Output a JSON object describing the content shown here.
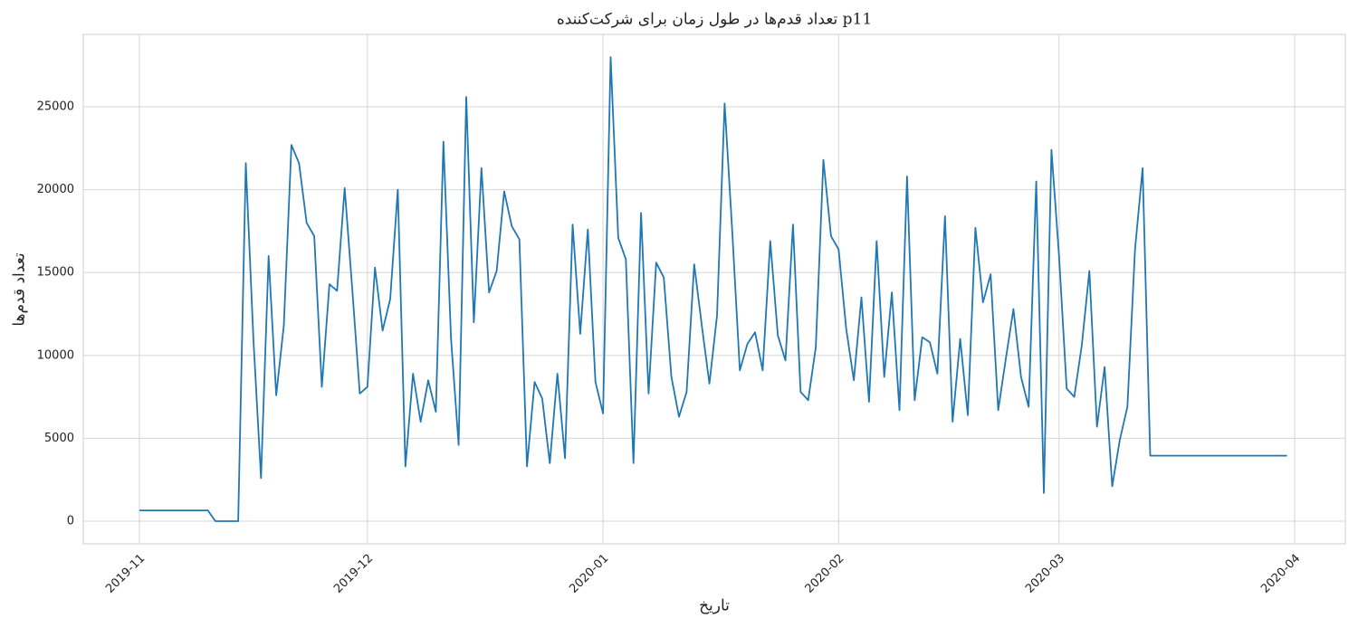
{
  "chart_data": {
    "type": "line",
    "title": "تعداد قدم‌ها در طول زمان برای شرکت‌کننده p11",
    "x_label": "تاریخ",
    "y_label": "تعداد قدم‌ها",
    "categories": [
      "2019-11",
      null,
      null,
      null,
      null,
      null,
      null,
      null,
      null,
      null,
      null,
      null,
      null,
      null,
      null,
      null,
      null,
      null,
      null,
      null,
      null,
      null,
      null,
      null,
      null,
      null,
      null,
      null,
      null,
      null,
      "2019-12",
      null,
      null,
      null,
      null,
      null,
      null,
      null,
      null,
      null,
      null,
      null,
      null,
      null,
      null,
      null,
      null,
      null,
      null,
      null,
      null,
      null,
      null,
      null,
      null,
      null,
      null,
      null,
      null,
      null,
      null,
      "2020-01",
      null,
      null,
      null,
      null,
      null,
      null,
      null,
      null,
      null,
      null,
      null,
      null,
      null,
      null,
      null,
      null,
      null,
      null,
      null,
      null,
      null,
      null,
      null,
      null,
      null,
      null,
      null,
      null,
      null,
      null,
      "2020-02",
      null,
      null,
      null,
      null,
      null,
      null,
      null,
      null,
      null,
      null,
      null,
      null,
      null,
      null,
      null,
      null,
      null,
      null,
      null,
      null,
      null,
      null,
      null,
      null,
      null,
      null,
      null,
      null,
      "2020-03",
      null,
      null,
      null,
      null,
      null,
      null,
      null,
      null,
      null,
      null,
      null,
      null,
      null,
      null,
      null,
      null,
      null,
      null,
      null,
      null,
      null,
      null,
      null,
      null,
      null,
      null,
      null,
      null,
      null,
      null,
      "2020-04"
    ],
    "series": [
      {
        "name": "p11",
        "color": "#1f77b4",
        "values": [
          650,
          650,
          650,
          650,
          650,
          650,
          650,
          650,
          650,
          650,
          0,
          0,
          0,
          0,
          21600,
          11000,
          2600,
          16000,
          7600,
          11800,
          22700,
          21600,
          18000,
          17200,
          8100,
          14300,
          13900,
          20100,
          14000,
          7700,
          8100,
          15300,
          11500,
          13400,
          20000,
          3300,
          8900,
          6000,
          8500,
          6600,
          22900,
          11000,
          4600,
          25600,
          12000,
          21300,
          13800,
          15100,
          19900,
          17800,
          17000,
          3300,
          8400,
          7400,
          3500,
          8900,
          3800,
          17900,
          11300,
          17600,
          8400,
          6500,
          28000,
          17100,
          15800,
          3500,
          18600,
          7700,
          15600,
          14700,
          8700,
          6300,
          7800,
          15500,
          11800,
          8300,
          12400,
          25200,
          17500,
          9100,
          10700,
          11400,
          9100,
          16900,
          11200,
          9700,
          17900,
          7800,
          7300,
          10500,
          21800,
          17200,
          16400,
          11600,
          8500,
          13500,
          7200,
          16900,
          8700,
          13800,
          6700,
          20800,
          7300,
          11100,
          10800,
          8900,
          18400,
          6000,
          11000,
          6400,
          17700,
          13200,
          14900,
          6700,
          9800,
          12800,
          8700,
          6900,
          20500,
          1700,
          22400,
          16000,
          8000,
          7500,
          10600,
          15100,
          5700,
          9300,
          2100,
          4900,
          6900,
          16400,
          21300,
          3950,
          3950,
          3950,
          3950,
          3950,
          3950,
          3950,
          3950,
          3950,
          3950,
          3950,
          3950,
          3950,
          3950,
          3950,
          3950,
          3950,
          3950,
          3950,
          null
        ]
      }
    ],
    "ylim": [
      -1365,
      29370
    ],
    "yticks": [
      0,
      5000,
      10000,
      15000,
      20000,
      25000
    ],
    "grid": true
  }
}
